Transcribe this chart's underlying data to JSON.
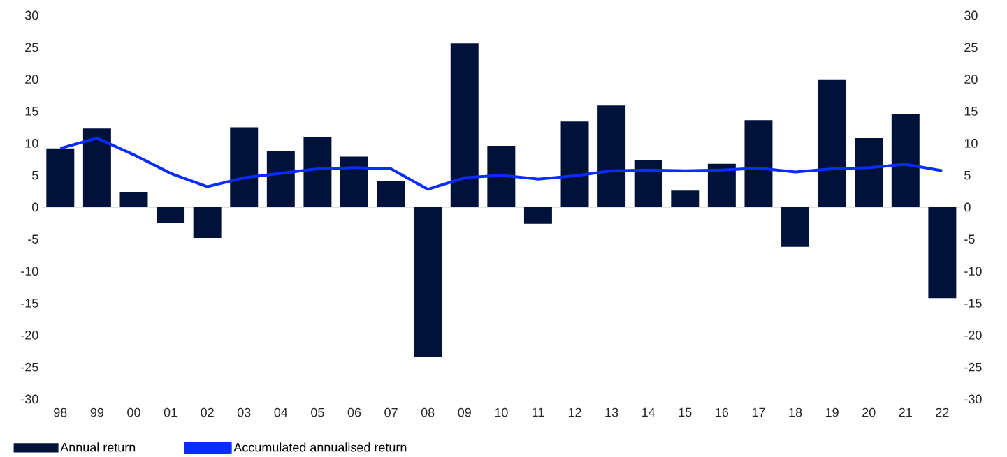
{
  "chart_data": {
    "type": "bar",
    "categories": [
      "98",
      "99",
      "00",
      "01",
      "02",
      "03",
      "04",
      "05",
      "06",
      "07",
      "08",
      "09",
      "10",
      "11",
      "12",
      "13",
      "14",
      "15",
      "16",
      "17",
      "18",
      "19",
      "20",
      "21",
      "22"
    ],
    "series": [
      {
        "name": "Annual return",
        "color": "#00113a",
        "values": [
          9.2,
          12.3,
          2.4,
          -2.5,
          -4.8,
          12.5,
          8.8,
          11.0,
          7.9,
          4.1,
          -23.4,
          25.6,
          9.6,
          -2.6,
          13.4,
          15.9,
          7.4,
          2.6,
          6.8,
          13.6,
          -6.2,
          20.0,
          10.8,
          14.5,
          -14.2
        ]
      },
      {
        "name": "Accumulated annualised return",
        "type": "line",
        "color": "#0a2cff",
        "values": [
          9.2,
          10.8,
          8.2,
          5.3,
          3.2,
          4.6,
          5.3,
          6.0,
          6.2,
          6.0,
          2.8,
          4.6,
          5.0,
          4.4,
          4.9,
          5.7,
          5.8,
          5.7,
          5.8,
          6.1,
          5.5,
          6.0,
          6.2,
          6.7,
          5.7
        ]
      }
    ],
    "ylim": [
      -30,
      30
    ],
    "yticks": [
      -30,
      -25,
      -20,
      -15,
      -10,
      -5,
      0,
      5,
      10,
      15,
      20,
      25,
      30
    ],
    "y2lim": [
      -30,
      30
    ],
    "y2ticks": [
      -30,
      -25,
      -20,
      -15,
      -10,
      -5,
      0,
      5,
      10,
      15,
      20,
      25,
      30
    ],
    "ref_lines": [
      {
        "axis": "y",
        "value": 0,
        "color": "#b0b0b0"
      }
    ],
    "grid": false,
    "legend": "bottom",
    "marker": "none",
    "line_style": "solid"
  }
}
